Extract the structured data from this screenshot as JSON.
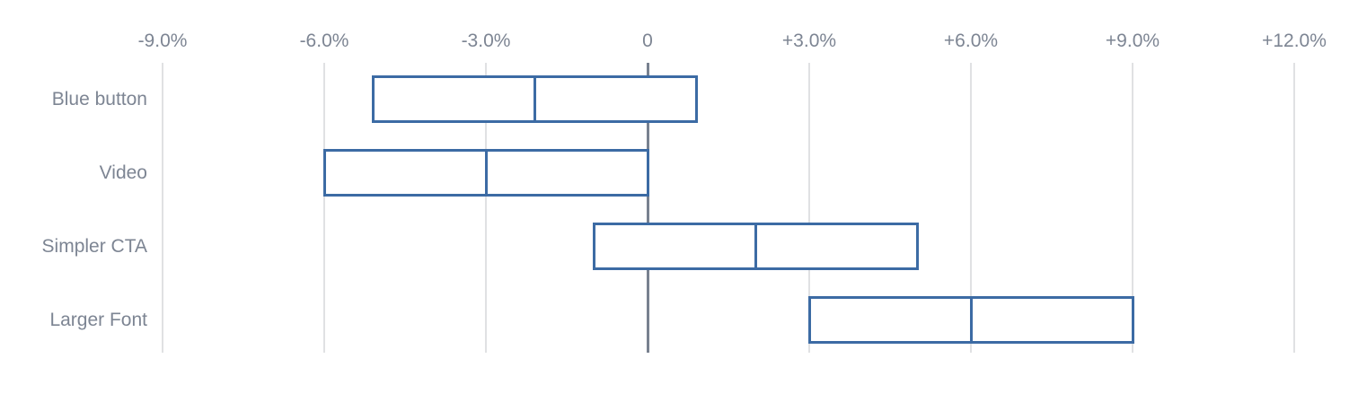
{
  "chart_data": {
    "type": "bar",
    "variant": "horizontal_interval_range",
    "title": "",
    "xlabel": "",
    "ylabel": "",
    "legend": false,
    "grid": "vertical",
    "categories": [
      "Blue button",
      "Video",
      "Simpler CTA",
      "Larger Font"
    ],
    "series": [
      {
        "name": "lift_confidence_interval",
        "unit": "%",
        "ranges": [
          {
            "category": "Blue button",
            "low": -5.1,
            "mid": -2.1,
            "high": 0.9
          },
          {
            "category": "Video",
            "low": -6.0,
            "mid": -3.0,
            "high": 0.0
          },
          {
            "category": "Simpler CTA",
            "low": -1.0,
            "mid": 2.0,
            "high": 5.0
          },
          {
            "category": "Larger Font",
            "low": 3.0,
            "mid": 6.0,
            "high": 9.0
          }
        ]
      }
    ],
    "x_axis": {
      "range": [
        -9,
        12
      ],
      "unit": "%",
      "tick_label_position": "top",
      "zero_line": true,
      "ticks": [
        {
          "value": -9,
          "label": "-9.0%"
        },
        {
          "value": -6,
          "label": "-6.0%"
        },
        {
          "value": -3,
          "label": "-3.0%"
        },
        {
          "value": 0,
          "label": "0"
        },
        {
          "value": 3,
          "label": "+3.0%"
        },
        {
          "value": 6,
          "label": "+6.0%"
        },
        {
          "value": 9,
          "label": "+9.0%"
        },
        {
          "value": 12,
          "label": "+12.0%"
        }
      ]
    },
    "colors": {
      "background": "#ffffff",
      "box_border": "#3c6ba4",
      "box_fill": "#ffffff",
      "gridline": "#e0e1e3",
      "zero_line": "#78818f",
      "label_text": "#7d8593"
    }
  }
}
